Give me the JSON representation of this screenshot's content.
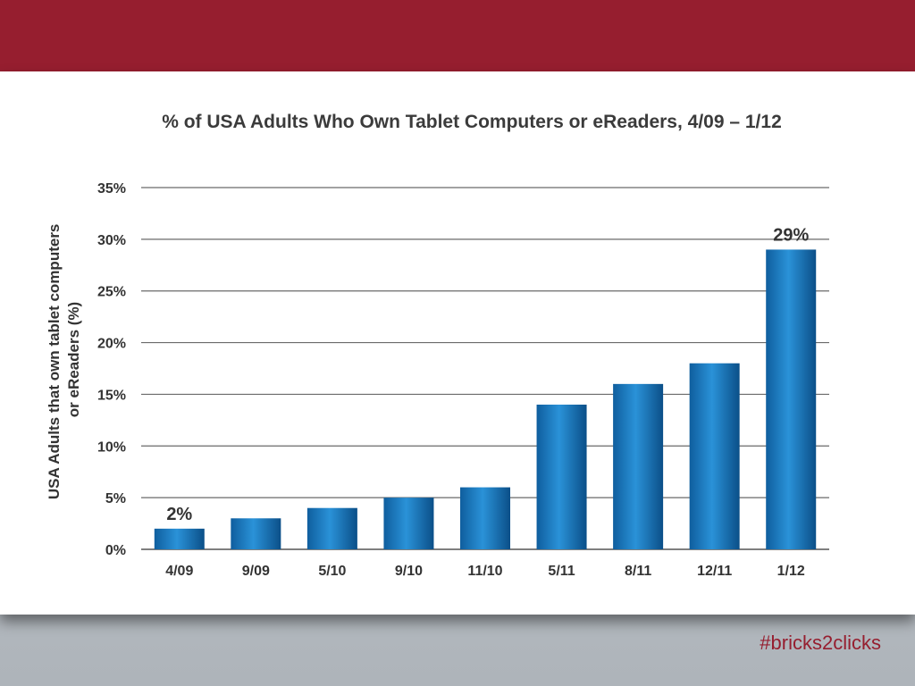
{
  "slide": {
    "hashtag": "#bricks2clicks",
    "accent_color": "#961e2f"
  },
  "chart_data": {
    "type": "bar",
    "title": "% of USA Adults Who Own Tablet Computers or eReaders, 4/09 – 1/12",
    "xlabel": "",
    "ylabel_lines": [
      "USA Adults that own tablet computers",
      "or eReaders (%)"
    ],
    "categories": [
      "4/09",
      "9/09",
      "5/10",
      "9/10",
      "11/10",
      "5/11",
      "8/11",
      "12/11",
      "1/12"
    ],
    "values": [
      2,
      3,
      4,
      5,
      6,
      14,
      16,
      18,
      29
    ],
    "ylim": [
      0,
      35
    ],
    "yticks": [
      0,
      5,
      10,
      15,
      20,
      25,
      30,
      35
    ],
    "ytick_labels": [
      "0%",
      "5%",
      "10%",
      "15%",
      "20%",
      "25%",
      "30%",
      "35%"
    ],
    "data_labels": [
      {
        "index": 0,
        "text": "2%"
      },
      {
        "index": 8,
        "text": "29%"
      }
    ],
    "grid": true,
    "legend": "none",
    "bar_color": "#1a7cc4"
  }
}
